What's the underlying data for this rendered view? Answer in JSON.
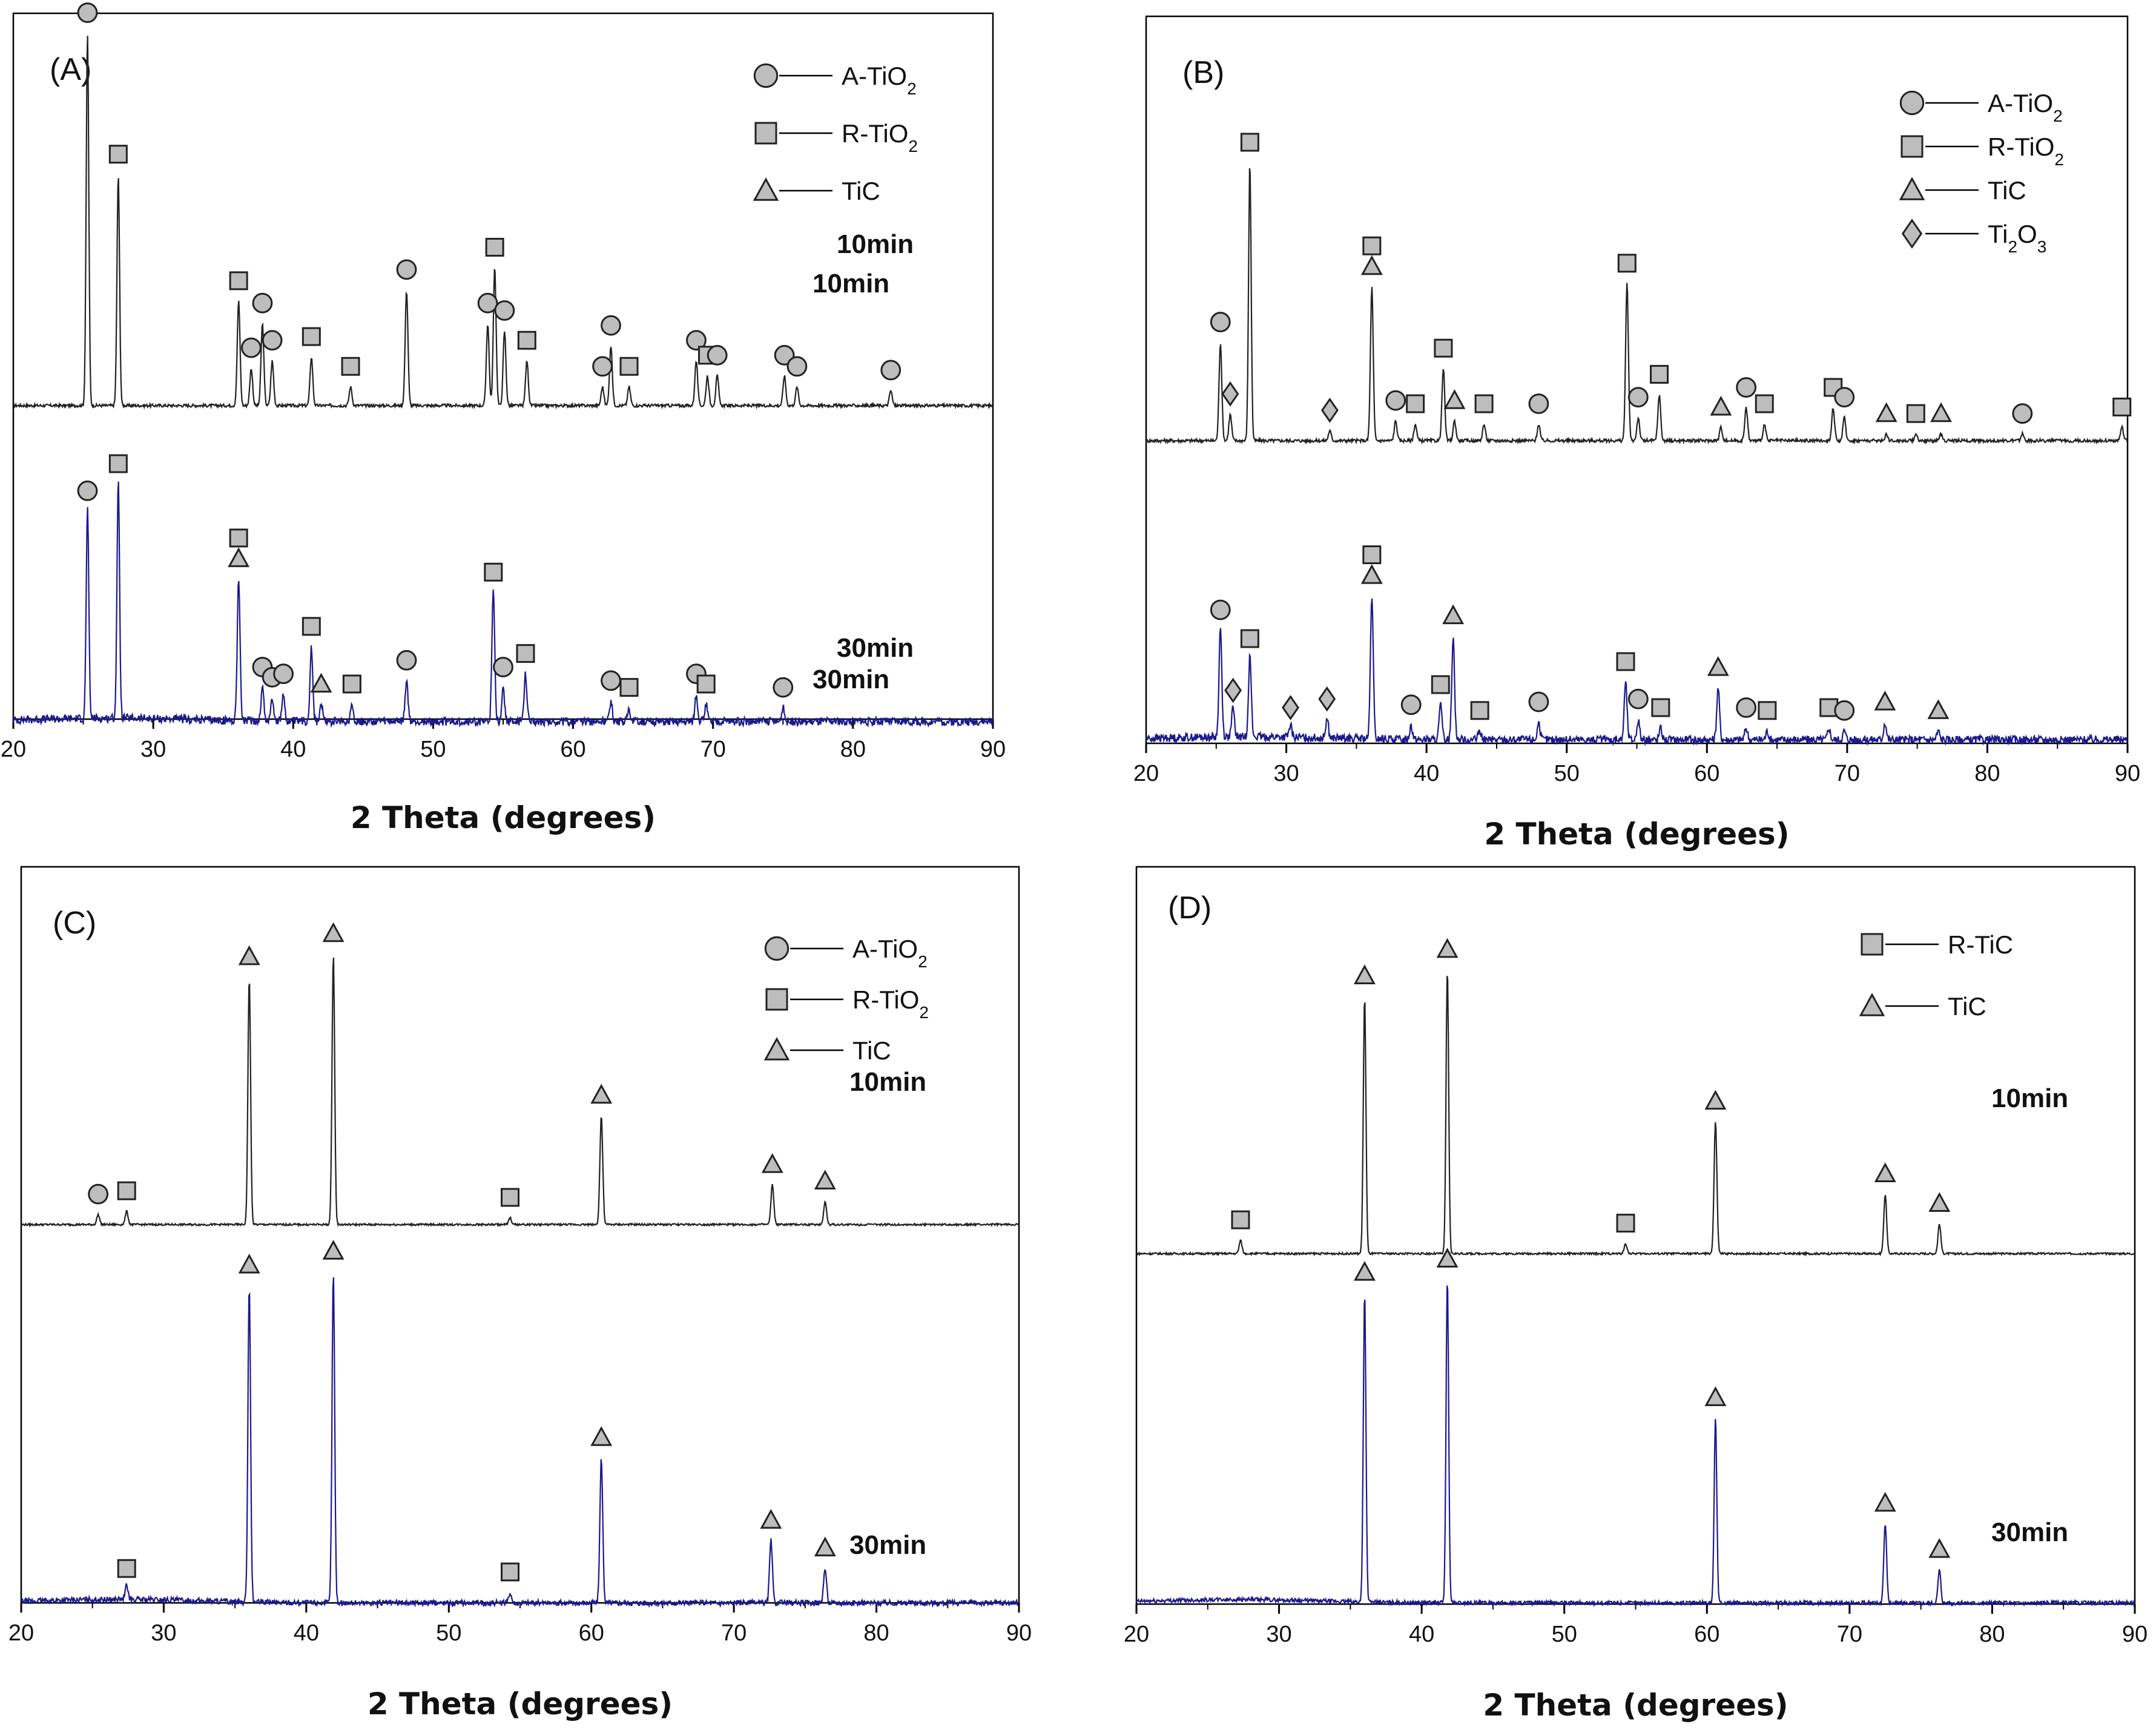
{
  "figure": {
    "layout": "2x2 grid of XRD patterns"
  },
  "colors": {
    "trace_10min": "#222222",
    "trace_30min": "#1a1a8c",
    "marker_fill": "#bdbdbd",
    "marker_stroke": "#222222"
  },
  "chart_data": [
    {
      "panel_label": "(A)",
      "type": "line",
      "xlabel": "2 Theta (degrees)",
      "ylabel": "",
      "xlim": [
        20,
        90
      ],
      "xticks": [
        20,
        30,
        40,
        50,
        60,
        70,
        80,
        90
      ],
      "legend": [
        {
          "symbol": "circle",
          "label": "A-TiO2"
        },
        {
          "symbol": "square",
          "label": "R-TiO2"
        },
        {
          "symbol": "triangle",
          "label": "TiC"
        }
      ],
      "series": [
        {
          "name": "10min",
          "color": "#222222",
          "peaks": [
            {
              "x": 25.3,
              "h": 1.0,
              "phase": "circle"
            },
            {
              "x": 27.5,
              "h": 0.62,
              "phase": "square"
            },
            {
              "x": 36.1,
              "h": 0.28,
              "phase": "square"
            },
            {
              "x": 37.8,
              "h": 0.22,
              "phase": "circle"
            },
            {
              "x": 37.0,
              "h": 0.1,
              "phase": "circle"
            },
            {
              "x": 38.5,
              "h": 0.12,
              "phase": "circle"
            },
            {
              "x": 41.3,
              "h": 0.13,
              "phase": "square"
            },
            {
              "x": 44.1,
              "h": 0.05,
              "phase": "square"
            },
            {
              "x": 48.1,
              "h": 0.31,
              "phase": "circle"
            },
            {
              "x": 53.9,
              "h": 0.22,
              "phase": "circle"
            },
            {
              "x": 54.4,
              "h": 0.37,
              "phase": "square"
            },
            {
              "x": 55.1,
              "h": 0.2,
              "phase": "circle"
            },
            {
              "x": 56.7,
              "h": 0.12,
              "phase": "square"
            },
            {
              "x": 62.1,
              "h": 0.05,
              "phase": "circle"
            },
            {
              "x": 62.7,
              "h": 0.16,
              "phase": "circle"
            },
            {
              "x": 64.0,
              "h": 0.05,
              "phase": "square"
            },
            {
              "x": 68.8,
              "h": 0.12,
              "phase": "circle"
            },
            {
              "x": 69.6,
              "h": 0.08,
              "phase": "square"
            },
            {
              "x": 70.3,
              "h": 0.08,
              "phase": "circle"
            },
            {
              "x": 75.1,
              "h": 0.08,
              "phase": "circle"
            },
            {
              "x": 76.0,
              "h": 0.05,
              "phase": "circle"
            },
            {
              "x": 82.7,
              "h": 0.04,
              "phase": "circle"
            }
          ]
        },
        {
          "name": "30min",
          "color": "#1a1a8c",
          "peaks": [
            {
              "x": 25.3,
              "h": 0.62,
              "phase": "circle"
            },
            {
              "x": 27.5,
              "h": 0.7,
              "phase": "square"
            },
            {
              "x": 36.1,
              "h": 0.42,
              "phase": "square+triangle"
            },
            {
              "x": 37.8,
              "h": 0.1,
              "phase": "circle"
            },
            {
              "x": 38.5,
              "h": 0.07,
              "phase": "circle"
            },
            {
              "x": 39.3,
              "h": 0.08,
              "phase": "circle"
            },
            {
              "x": 41.3,
              "h": 0.22,
              "phase": "square"
            },
            {
              "x": 42.0,
              "h": 0.05,
              "phase": "triangle"
            },
            {
              "x": 44.2,
              "h": 0.05,
              "phase": "square"
            },
            {
              "x": 48.1,
              "h": 0.12,
              "phase": "circle"
            },
            {
              "x": 54.3,
              "h": 0.38,
              "phase": "square"
            },
            {
              "x": 55.0,
              "h": 0.1,
              "phase": "circle"
            },
            {
              "x": 56.6,
              "h": 0.14,
              "phase": "square"
            },
            {
              "x": 62.7,
              "h": 0.06,
              "phase": "circle"
            },
            {
              "x": 64.0,
              "h": 0.04,
              "phase": "square"
            },
            {
              "x": 68.8,
              "h": 0.08,
              "phase": "circle"
            },
            {
              "x": 69.5,
              "h": 0.05,
              "phase": "square"
            },
            {
              "x": 75.0,
              "h": 0.04,
              "phase": "circle"
            }
          ]
        }
      ]
    },
    {
      "panel_label": "(B)",
      "type": "line",
      "xlabel": "2 Theta (degrees)",
      "ylabel": "",
      "xlim": [
        20,
        90
      ],
      "xticks": [
        20,
        30,
        40,
        50,
        60,
        70,
        80,
        90
      ],
      "legend": [
        {
          "symbol": "circle",
          "label": "A-TiO2"
        },
        {
          "symbol": "square",
          "label": "R-TiO2"
        },
        {
          "symbol": "triangle",
          "label": "TiC"
        },
        {
          "symbol": "diamond",
          "label": "Ti2O3"
        }
      ],
      "series": [
        {
          "name": "10min",
          "color": "#222222",
          "peaks": [
            {
              "x": 25.3,
              "h": 0.3,
              "phase": "circle"
            },
            {
              "x": 26.0,
              "h": 0.08,
              "phase": "diamond"
            },
            {
              "x": 27.4,
              "h": 0.85,
              "phase": "square"
            },
            {
              "x": 33.1,
              "h": 0.03,
              "phase": "diamond"
            },
            {
              "x": 36.1,
              "h": 0.47,
              "phase": "square+triangle"
            },
            {
              "x": 37.8,
              "h": 0.06,
              "phase": "circle"
            },
            {
              "x": 39.2,
              "h": 0.05,
              "phase": "square"
            },
            {
              "x": 41.2,
              "h": 0.22,
              "phase": "square"
            },
            {
              "x": 42.0,
              "h": 0.06,
              "phase": "triangle"
            },
            {
              "x": 44.1,
              "h": 0.05,
              "phase": "square"
            },
            {
              "x": 48.0,
              "h": 0.05,
              "phase": "circle"
            },
            {
              "x": 54.3,
              "h": 0.48,
              "phase": "square"
            },
            {
              "x": 55.1,
              "h": 0.07,
              "phase": "circle"
            },
            {
              "x": 56.6,
              "h": 0.14,
              "phase": "square"
            },
            {
              "x": 61.0,
              "h": 0.04,
              "phase": "triangle"
            },
            {
              "x": 62.8,
              "h": 0.1,
              "phase": "circle"
            },
            {
              "x": 64.1,
              "h": 0.05,
              "phase": "square"
            },
            {
              "x": 69.0,
              "h": 0.1,
              "phase": "square"
            },
            {
              "x": 69.8,
              "h": 0.07,
              "phase": "circle"
            },
            {
              "x": 72.8,
              "h": 0.02,
              "phase": "triangle"
            },
            {
              "x": 74.9,
              "h": 0.02,
              "phase": "square"
            },
            {
              "x": 76.7,
              "h": 0.02,
              "phase": "triangle"
            },
            {
              "x": 82.5,
              "h": 0.02,
              "phase": "circle"
            },
            {
              "x": 89.6,
              "h": 0.04,
              "phase": "square"
            }
          ]
        },
        {
          "name": "30min",
          "color": "#1a1a8c",
          "peaks": [
            {
              "x": 25.3,
              "h": 0.38,
              "phase": "circle"
            },
            {
              "x": 26.2,
              "h": 0.1,
              "phase": "diamond"
            },
            {
              "x": 27.4,
              "h": 0.28,
              "phase": "square"
            },
            {
              "x": 30.3,
              "h": 0.04,
              "phase": "diamond"
            },
            {
              "x": 32.9,
              "h": 0.07,
              "phase": "diamond"
            },
            {
              "x": 36.1,
              "h": 0.5,
              "phase": "square+triangle"
            },
            {
              "x": 38.9,
              "h": 0.05,
              "phase": "circle"
            },
            {
              "x": 41.0,
              "h": 0.12,
              "phase": "square"
            },
            {
              "x": 41.9,
              "h": 0.36,
              "phase": "triangle"
            },
            {
              "x": 43.8,
              "h": 0.03,
              "phase": "square"
            },
            {
              "x": 48.0,
              "h": 0.06,
              "phase": "circle"
            },
            {
              "x": 54.2,
              "h": 0.2,
              "phase": "square"
            },
            {
              "x": 55.1,
              "h": 0.07,
              "phase": "circle"
            },
            {
              "x": 56.7,
              "h": 0.04,
              "phase": "square"
            },
            {
              "x": 60.8,
              "h": 0.18,
              "phase": "triangle"
            },
            {
              "x": 62.8,
              "h": 0.04,
              "phase": "circle"
            },
            {
              "x": 64.3,
              "h": 0.03,
              "phase": "square"
            },
            {
              "x": 68.7,
              "h": 0.04,
              "phase": "square"
            },
            {
              "x": 69.8,
              "h": 0.03,
              "phase": "circle"
            },
            {
              "x": 72.7,
              "h": 0.06,
              "phase": "triangle"
            },
            {
              "x": 76.5,
              "h": 0.03,
              "phase": "triangle"
            }
          ]
        }
      ]
    },
    {
      "panel_label": "(C)",
      "type": "line",
      "xlabel": "2 Theta (degrees)",
      "ylabel": "",
      "xlim": [
        20,
        90
      ],
      "xticks": [
        20,
        30,
        40,
        50,
        60,
        70,
        80,
        90
      ],
      "legend": [
        {
          "symbol": "circle",
          "label": "A-TiO2"
        },
        {
          "symbol": "square",
          "label": "R-TiO2"
        },
        {
          "symbol": "triangle",
          "label": "TiC"
        }
      ],
      "series": [
        {
          "name": "10min",
          "color": "#222222",
          "peaks": [
            {
              "x": 25.4,
              "h": 0.03,
              "phase": "circle"
            },
            {
              "x": 27.4,
              "h": 0.04,
              "phase": "square"
            },
            {
              "x": 36.0,
              "h": 0.75,
              "phase": "triangle"
            },
            {
              "x": 41.9,
              "h": 0.82,
              "phase": "triangle"
            },
            {
              "x": 54.3,
              "h": 0.02,
              "phase": "square"
            },
            {
              "x": 60.7,
              "h": 0.33,
              "phase": "triangle"
            },
            {
              "x": 72.7,
              "h": 0.12,
              "phase": "triangle"
            },
            {
              "x": 76.4,
              "h": 0.07,
              "phase": "triangle"
            }
          ]
        },
        {
          "name": "30min",
          "color": "#1a1a8c",
          "peaks": [
            {
              "x": 27.4,
              "h": 0.04,
              "phase": "square"
            },
            {
              "x": 36.0,
              "h": 0.92,
              "phase": "triangle"
            },
            {
              "x": 41.9,
              "h": 0.96,
              "phase": "triangle"
            },
            {
              "x": 54.3,
              "h": 0.03,
              "phase": "square"
            },
            {
              "x": 60.7,
              "h": 0.42,
              "phase": "triangle"
            },
            {
              "x": 72.6,
              "h": 0.18,
              "phase": "triangle"
            },
            {
              "x": 76.4,
              "h": 0.1,
              "phase": "triangle"
            }
          ]
        }
      ]
    },
    {
      "panel_label": "(D)",
      "type": "line",
      "xlabel": "2 Theta (degrees)",
      "ylabel": "",
      "xlim": [
        20,
        90
      ],
      "xticks": [
        20,
        30,
        40,
        50,
        60,
        70,
        80,
        90
      ],
      "legend": [
        {
          "symbol": "square",
          "label": "R-TiC"
        },
        {
          "symbol": "triangle",
          "label": "TiC"
        }
      ],
      "series": [
        {
          "name": "10min",
          "color": "#222222",
          "peaks": [
            {
              "x": 27.3,
              "h": 0.04,
              "phase": "square"
            },
            {
              "x": 36.0,
              "h": 0.78,
              "phase": "triangle"
            },
            {
              "x": 41.8,
              "h": 0.86,
              "phase": "triangle"
            },
            {
              "x": 54.3,
              "h": 0.03,
              "phase": "square"
            },
            {
              "x": 60.6,
              "h": 0.4,
              "phase": "triangle"
            },
            {
              "x": 72.5,
              "h": 0.18,
              "phase": "triangle"
            },
            {
              "x": 76.3,
              "h": 0.09,
              "phase": "triangle"
            }
          ]
        },
        {
          "name": "30min",
          "color": "#1a1a8c",
          "peaks": [
            {
              "x": 36.0,
              "h": 0.94,
              "phase": "triangle"
            },
            {
              "x": 41.8,
              "h": 0.98,
              "phase": "triangle"
            },
            {
              "x": 60.6,
              "h": 0.56,
              "phase": "triangle"
            },
            {
              "x": 72.5,
              "h": 0.24,
              "phase": "triangle"
            },
            {
              "x": 76.3,
              "h": 0.1,
              "phase": "triangle"
            }
          ]
        }
      ]
    }
  ]
}
